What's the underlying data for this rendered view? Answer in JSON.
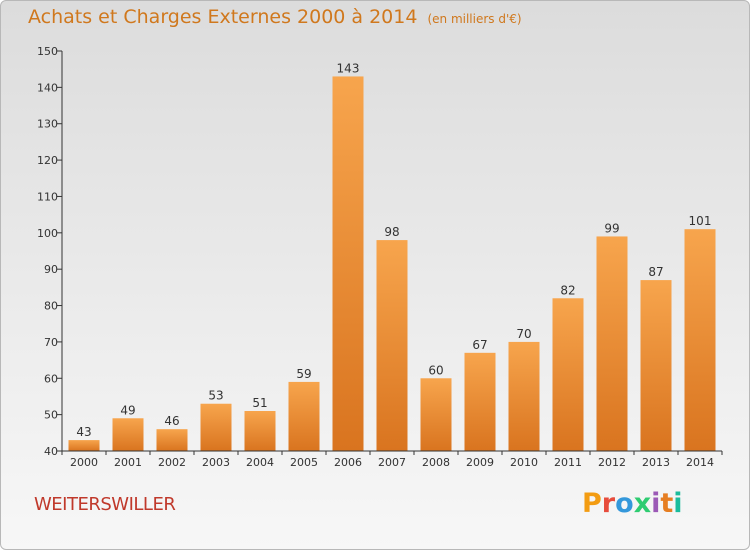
{
  "header": {
    "title": "Achats et Charges Externes 2000 à 2014",
    "unit": "(en milliers d'€)"
  },
  "footer": {
    "commune": "WEITERSWILLER",
    "brand": "Proxiti",
    "brand_colors": [
      "#f39c12",
      "#e74c3c",
      "#3498db",
      "#2ecc71",
      "#9b59b6",
      "#e67e22",
      "#1abc9c"
    ]
  },
  "colors": {
    "bar_top": "#f7a54d",
    "bar_bottom": "#d9741f",
    "title": "#d0781d",
    "commune": "#c0392b",
    "axis": "#333333"
  },
  "chart_data": {
    "type": "bar",
    "categories": [
      "2000",
      "2001",
      "2002",
      "2003",
      "2004",
      "2005",
      "2006",
      "2007",
      "2008",
      "2009",
      "2010",
      "2011",
      "2012",
      "2013",
      "2014"
    ],
    "values": [
      43,
      49,
      46,
      53,
      51,
      59,
      143,
      98,
      60,
      67,
      70,
      82,
      99,
      87,
      101
    ],
    "ylim": [
      40,
      150
    ],
    "yticks": [
      40,
      50,
      60,
      70,
      80,
      90,
      100,
      110,
      120,
      130,
      140,
      150
    ],
    "grid": false,
    "data_labels": true
  }
}
